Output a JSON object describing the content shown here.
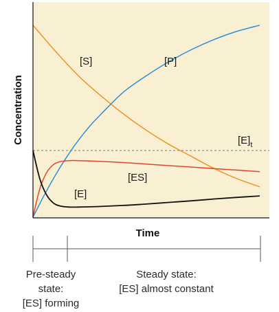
{
  "chart_data": {
    "type": "line",
    "xlabel": "Time",
    "ylabel": "Concentration",
    "xlim": [
      0,
      100
    ],
    "ylim": [
      0,
      100
    ],
    "grid": false,
    "background": "#f9efd3",
    "series": [
      {
        "name": "[S]",
        "color": "#f0951f",
        "x": [
          0,
          10,
          20,
          30,
          40,
          50,
          60,
          70,
          80,
          90,
          100
        ],
        "y": [
          95,
          82,
          70,
          60,
          51,
          43,
          36,
          30,
          24,
          19,
          15
        ]
      },
      {
        "name": "[P]",
        "color": "#2b8fd8",
        "x": [
          0,
          5,
          10,
          15,
          20,
          25,
          30,
          40,
          50,
          60,
          70,
          80,
          90,
          100
        ],
        "y": [
          0,
          11,
          21,
          30,
          38,
          45,
          51,
          62,
          70,
          77,
          83,
          88,
          92,
          95
        ]
      },
      {
        "name": "[ES]",
        "color": "#e0452c",
        "x": [
          0,
          3,
          6,
          9,
          12,
          16,
          20,
          30,
          40,
          50,
          60,
          70,
          80,
          90,
          100
        ],
        "y": [
          0,
          14,
          22,
          26,
          27.5,
          28,
          28,
          27.6,
          27,
          26.3,
          25.5,
          24.8,
          24,
          23.3,
          22.5
        ]
      },
      {
        "name": "[E]",
        "color": "#111111",
        "x": [
          0,
          3,
          6,
          9,
          12,
          16,
          20,
          30,
          40,
          50,
          60,
          70,
          80,
          90,
          100
        ],
        "y": [
          33,
          19,
          11,
          7,
          5.5,
          5,
          5,
          5.3,
          5.8,
          6.5,
          7.3,
          8.1,
          9,
          9.8,
          10.5
        ]
      }
    ],
    "reference_lines": [
      {
        "label": "[E]",
        "subscript": "t",
        "y": 33,
        "style": "dashed",
        "color": "#777777"
      }
    ],
    "phases": [
      {
        "label_lines": [
          "Pre-steady",
          "state:",
          "[ES] forming"
        ],
        "x_range": [
          0,
          15
        ]
      },
      {
        "label_lines": [
          "Steady state:",
          "[ES] almost constant"
        ],
        "x_range": [
          15,
          100
        ]
      }
    ]
  }
}
